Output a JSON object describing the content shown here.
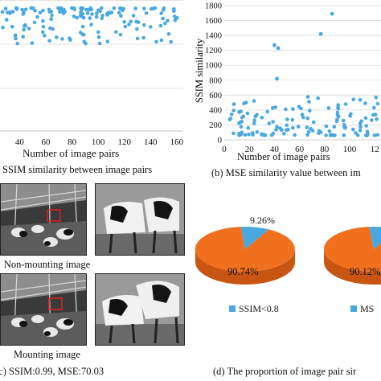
{
  "charts": [
    {
      "type": "scatter",
      "panel_caption": "(a) SSIM similarity between image pairs",
      "xlabel": "Number of image pairs",
      "ylabel": "",
      "x_ticks": [
        "40",
        "60",
        "80",
        "100",
        "120",
        "140",
        "160"
      ],
      "xlim": [
        25,
        165
      ],
      "ylim": [
        0.5,
        1.0
      ],
      "marker_color": "#4aa8e0",
      "grid": true
    },
    {
      "type": "scatter",
      "panel_caption": "(b) MSE similarity value between im",
      "xlabel": "Number of image pairs",
      "ylabel": "SSIM similarity",
      "x_ticks": [
        "0",
        "20",
        "40",
        "60",
        "80",
        "100",
        "12"
      ],
      "y_ticks": [
        "0",
        "200",
        "400",
        "600",
        "800",
        "1000",
        "1200",
        "1400",
        "1600",
        "1800"
      ],
      "xlim": [
        0,
        125
      ],
      "ylim": [
        0,
        1800
      ],
      "marker_color": "#4aa8e0",
      "grid": true,
      "outliers": [
        [
          40,
          1270
        ],
        [
          43,
          1230
        ],
        [
          42,
          820
        ],
        [
          77,
          1420
        ],
        [
          86,
          1690
        ]
      ]
    }
  ],
  "images": {
    "top_caption": "Non-mounting image",
    "bottom_caption": "Mounting image",
    "panel_caption": "(c) SSIM:0.99, MSE:70.03"
  },
  "pies": {
    "panel_caption": "(d) The proportion of image pair sir",
    "slice_color": "#f0701e",
    "minor_color": "#4aa8e0",
    "pie1": {
      "major_label": "90.74%",
      "minor_label": "9.26%",
      "major": 90.74,
      "minor": 9.26
    },
    "pie2": {
      "major_label": "90.12%",
      "major": 90.12,
      "minor": 9.88
    },
    "legend": [
      "SSIM<0.8",
      "MS"
    ]
  }
}
